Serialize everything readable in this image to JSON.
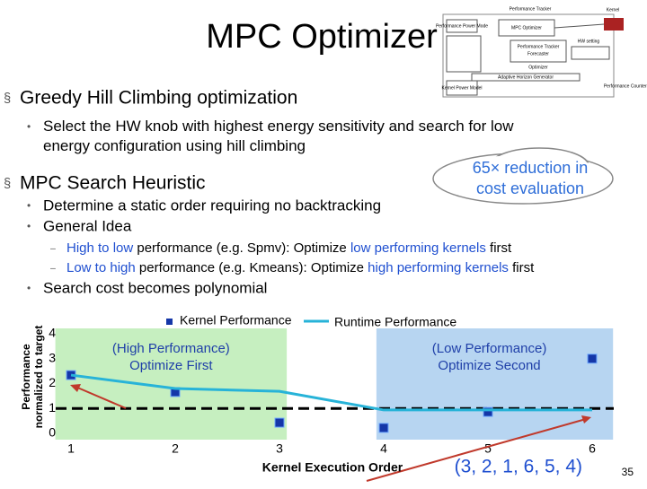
{
  "slide": {
    "title": "MPC Optimizer",
    "bullets": [
      {
        "text": "Greedy Hill Climbing optimization",
        "sub": [
          {
            "text": "Select the HW knob with highest energy sensitivity and search for low energy configuration using hill climbing"
          }
        ]
      },
      {
        "text": "MPC Search Heuristic",
        "sub": [
          {
            "text": "Determine a static order requiring no backtracking"
          },
          {
            "text": "General Idea",
            "sub": [
              {
                "parts": [
                  {
                    "text": "High to low",
                    "color": "#1f4fd0"
                  },
                  {
                    "text": " performance (e.g. Spmv): Optimize ",
                    "color": "#000000"
                  },
                  {
                    "text": "low performing kernels",
                    "color": "#1f4fd0"
                  },
                  {
                    "text": " first",
                    "color": "#000000"
                  }
                ]
              },
              {
                "parts": [
                  {
                    "text": "Low to high",
                    "color": "#1f4fd0"
                  },
                  {
                    "text": " performance (e.g. Kmeans): Optimize ",
                    "color": "#000000"
                  },
                  {
                    "text": "high performing kernels",
                    "color": "#1f4fd0"
                  },
                  {
                    "text": " first",
                    "color": "#000000"
                  }
                ]
              }
            ]
          },
          {
            "text": "Search cost becomes polynomial"
          }
        ]
      }
    ],
    "callout": [
      "65× reduction in",
      "cost evaluation"
    ],
    "order_note": "(3, 2, 1, 6, 5, 4)",
    "page_number": "35",
    "diagram": {
      "labels": [
        "Performance Tracker",
        "Performance Power Mode",
        "MPC Optimizer",
        "HW setting",
        "Kernel",
        "Performance Tracker",
        "Forecaster",
        "Optimizer",
        "Adaptive Horizon Generator",
        "Kernel Power Model",
        "Performance Counters"
      ]
    }
  },
  "chart_data": {
    "type": "line",
    "x_label": "Kernel Execution Order",
    "y_label": [
      "Performance",
      "normalized to target"
    ],
    "x": [
      1,
      2,
      3,
      4,
      5,
      6
    ],
    "series": [
      {
        "name": "Kernel Performance",
        "color": "#1537a8",
        "marker": "square",
        "values": [
          2.34,
          1.66,
          0.43,
          0.22,
          0.86,
          3.0
        ]
      },
      {
        "name": "Runtime Performance",
        "color": "#27b3d8",
        "marker": "line",
        "values": [
          2.34,
          1.8,
          1.69,
          0.94,
          0.94,
          0.94
        ]
      }
    ],
    "reference_line": 1,
    "regions": [
      {
        "label": [
          "(High Performance)",
          "Optimize First"
        ],
        "xrange": [
          0.85,
          3.07
        ],
        "color": "#c6efc0"
      },
      {
        "label": [
          "(Low Performance)",
          "Optimize Second"
        ],
        "xrange": [
          3.93,
          6.2
        ],
        "color": "#b7d5f1"
      }
    ],
    "xlim": [
      0.85,
      6.2
    ],
    "xticks": [
      1,
      2,
      3,
      4,
      5,
      6
    ],
    "ylim": [
      0,
      4.2
    ],
    "yticks": [
      0,
      1,
      2,
      3,
      4
    ]
  }
}
